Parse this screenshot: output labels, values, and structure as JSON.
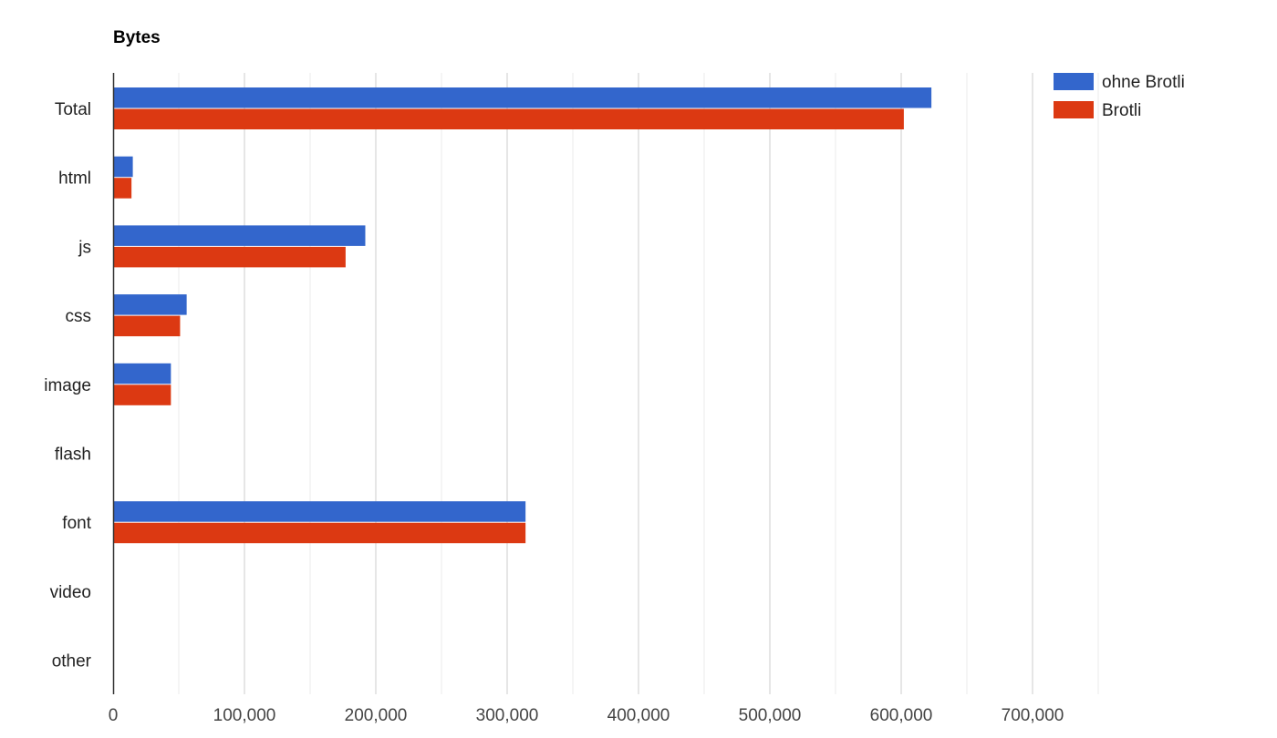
{
  "chart_data": {
    "type": "bar",
    "orientation": "horizontal",
    "title": "Bytes",
    "categories": [
      "Total",
      "html",
      "js",
      "css",
      "image",
      "flash",
      "font",
      "video",
      "other"
    ],
    "series": [
      {
        "name": "ohne Brotli",
        "color": "#3366cc",
        "values": [
          623000,
          15000,
          192000,
          56000,
          44000,
          0,
          314000,
          0,
          0
        ]
      },
      {
        "name": "Brotli",
        "color": "#dc3912",
        "values": [
          602000,
          14000,
          177000,
          51000,
          44000,
          0,
          314000,
          0,
          0
        ]
      }
    ],
    "x_ticks": [
      0,
      100000,
      200000,
      300000,
      400000,
      500000,
      600000,
      700000
    ],
    "x_tick_labels": [
      "0",
      "100,000",
      "200,000",
      "300,000",
      "400,000",
      "500,000",
      "600,000",
      "700,000"
    ],
    "xlim": [
      0,
      775000
    ],
    "grid": true,
    "legend_position": "top-right"
  }
}
